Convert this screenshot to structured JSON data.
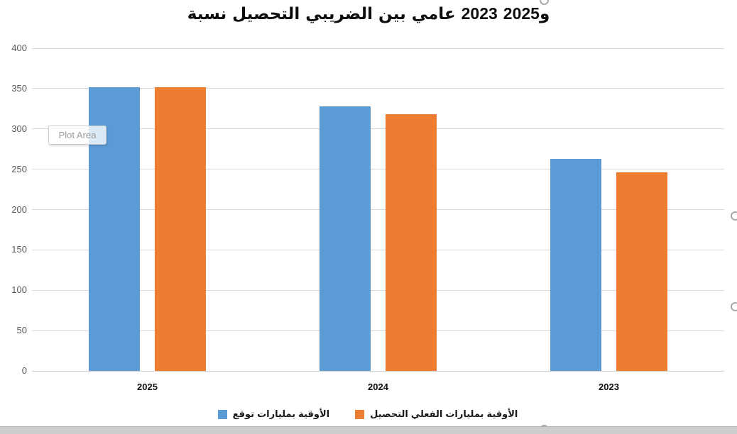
{
  "title": "نسبة التحصيل الضريبي بين عامي 2023 و2025",
  "plot_area_tooltip": "Plot Area",
  "colors": {
    "series_forecast": "#5B9BD5",
    "series_actual": "#ED7D31",
    "gridline": "#D9D9D9",
    "axis_text": "#595959"
  },
  "chart_data": {
    "type": "bar",
    "title": "نسبة التحصيل الضريبي بين عامي 2023 و2025",
    "categories": [
      "2025",
      "2024",
      "2023"
    ],
    "series": [
      {
        "name": "توقع بمليارات الأوقية",
        "color": "#5B9BD5",
        "values": [
          352,
          328,
          263
        ]
      },
      {
        "name": "التحصيل الفعلي بمليارات الأوقية",
        "color": "#ED7D31",
        "values": [
          352,
          318,
          246
        ]
      }
    ],
    "xlabel": "",
    "ylabel": "",
    "ylim": [
      0,
      400
    ],
    "ytick_step": 50,
    "yticks": [
      "0",
      "50",
      "100",
      "150",
      "200",
      "250",
      "300",
      "350",
      "400"
    ],
    "grid": true,
    "legend_position": "bottom"
  }
}
